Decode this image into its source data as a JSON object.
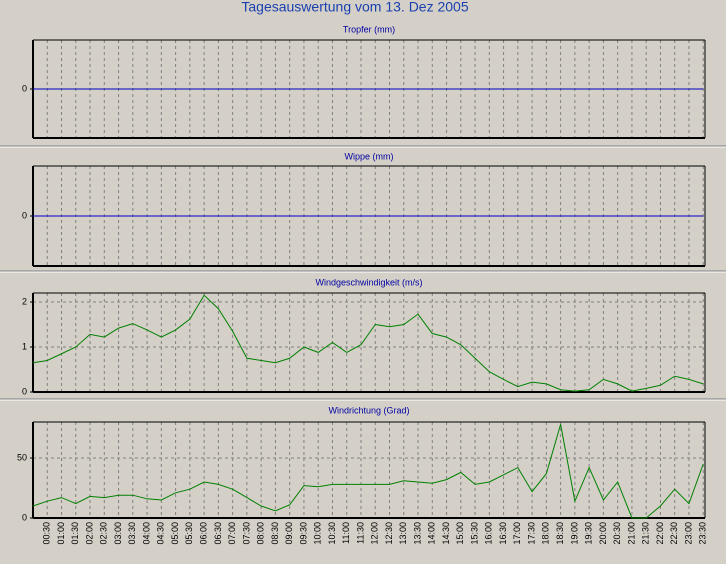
{
  "title": "Tagesauswertung vom 13. Dez 2005",
  "chart_data": [
    {
      "type": "line",
      "title": "Tropfer (mm)",
      "color": "#0000c0",
      "ylim": [
        -1,
        1
      ],
      "yticks": [
        0
      ],
      "grid": true,
      "values": [
        0,
        0,
        0,
        0,
        0,
        0,
        0,
        0,
        0,
        0,
        0,
        0,
        0,
        0,
        0,
        0,
        0,
        0,
        0,
        0,
        0,
        0,
        0,
        0,
        0,
        0,
        0,
        0,
        0,
        0,
        0,
        0,
        0,
        0,
        0,
        0,
        0,
        0,
        0,
        0,
        0,
        0,
        0,
        0,
        0,
        0,
        0,
        0
      ]
    },
    {
      "type": "line",
      "title": "Wippe (mm)",
      "color": "#0000c0",
      "ylim": [
        -1,
        1
      ],
      "yticks": [
        0
      ],
      "grid": true,
      "values": [
        0,
        0,
        0,
        0,
        0,
        0,
        0,
        0,
        0,
        0,
        0,
        0,
        0,
        0,
        0,
        0,
        0,
        0,
        0,
        0,
        0,
        0,
        0,
        0,
        0,
        0,
        0,
        0,
        0,
        0,
        0,
        0,
        0,
        0,
        0,
        0,
        0,
        0,
        0,
        0,
        0,
        0,
        0,
        0,
        0,
        0,
        0,
        0
      ]
    },
    {
      "type": "line",
      "title": "Windgeschwindigkeit (m/s)",
      "color": "#008000",
      "ylim": [
        0,
        2.2
      ],
      "yticks": [
        0,
        1,
        2
      ],
      "grid": true,
      "values": [
        0.65,
        0.7,
        0.85,
        1.0,
        1.28,
        1.22,
        1.42,
        1.52,
        1.38,
        1.22,
        1.38,
        1.62,
        2.15,
        1.85,
        1.35,
        0.75,
        0.7,
        0.65,
        0.75,
        1.0,
        0.88,
        1.1,
        0.88,
        1.05,
        1.5,
        1.45,
        1.5,
        1.73,
        1.3,
        1.22,
        1.05,
        0.75,
        0.45,
        0.28,
        0.12,
        0.22,
        0.18,
        0.05,
        0.02,
        0.05,
        0.28,
        0.18,
        0.02,
        0.08,
        0.15,
        0.35,
        0.28,
        0.18
      ]
    },
    {
      "type": "line",
      "title": "Windrichtung (Grad)",
      "color": "#008000",
      "ylim": [
        0,
        80
      ],
      "yticks": [
        0,
        50
      ],
      "grid": true,
      "categories": [
        null,
        "00:30",
        "01:00",
        "01:30",
        "02:00",
        "02:30",
        "03:00",
        "03:30",
        "04:00",
        "04:30",
        "05:00",
        "05:30",
        "06:00",
        "06:30",
        "07:00",
        "07:30",
        "08:00",
        "08:30",
        "09:00",
        "09:30",
        "10:00",
        "10:30",
        "11:00",
        "11:30",
        "12:00",
        "12:30",
        "13:00",
        "13:30",
        "14:00",
        "14:30",
        "15:00",
        "15:30",
        "16:00",
        "16:30",
        "17:00",
        "17:30",
        "18:00",
        "18:30",
        "19:00",
        "19:30",
        "20:00",
        "20:30",
        "21:00",
        "21:30",
        "22:00",
        "22:30",
        "23:00",
        "23:30"
      ],
      "values": [
        10,
        14,
        17,
        12,
        18,
        17,
        19,
        19,
        16,
        15,
        21,
        24,
        30,
        28,
        24,
        17,
        10,
        6,
        11,
        27,
        26,
        28,
        28,
        28,
        28,
        28,
        31,
        30,
        29,
        32,
        38,
        28,
        30,
        36,
        42,
        22,
        37,
        78,
        14,
        42,
        15,
        30,
        0,
        0,
        10,
        24,
        12,
        45
      ]
    }
  ]
}
